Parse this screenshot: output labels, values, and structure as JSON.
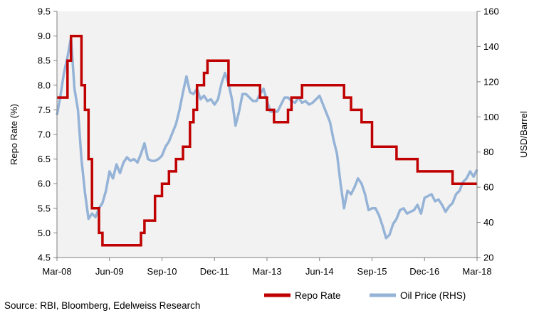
{
  "colors": {
    "plot_bg": "#f2f2f2",
    "repo": "#c00000",
    "oil": "#95b3d7"
  },
  "source": "Source: RBI, Bloomberg, Edelweiss Research",
  "chart_data": {
    "type": "line",
    "x_tick_labels": [
      "Mar-08",
      "Jun-09",
      "Sep-10",
      "Dec-11",
      "Mar-13",
      "Jun-14",
      "Sep-15",
      "Dec-16",
      "Mar-18"
    ],
    "xlim": [
      "2008-03",
      "2018-03"
    ],
    "left_axis": {
      "label": "Repo Rate (%)",
      "range": [
        4.5,
        9.5
      ],
      "ticks": [
        "4.5",
        "5.0",
        "5.5",
        "6.0",
        "6.5",
        "7.0",
        "7.5",
        "8.0",
        "8.5",
        "9.0",
        "9.5"
      ]
    },
    "right_axis": {
      "label": "USD/Barrel",
      "range": [
        20,
        160
      ],
      "ticks": [
        "20",
        "40",
        "60",
        "80",
        "100",
        "120",
        "140",
        "160"
      ]
    },
    "grid": false,
    "legend_position": "bottom-right",
    "series": [
      {
        "name": "Repo Rate",
        "axis": "left",
        "step": true,
        "color": "#c00000",
        "points": [
          [
            "2008-03",
            7.75
          ],
          [
            "2008-06",
            8.0
          ],
          [
            "2008-06",
            8.5
          ],
          [
            "2008-07",
            9.0
          ],
          [
            "2008-10",
            8.0
          ],
          [
            "2008-11",
            7.5
          ],
          [
            "2008-12",
            6.5
          ],
          [
            "2009-01",
            5.5
          ],
          [
            "2009-03",
            5.0
          ],
          [
            "2009-04",
            4.75
          ],
          [
            "2010-03",
            5.0
          ],
          [
            "2010-04",
            5.25
          ],
          [
            "2010-07",
            5.5
          ],
          [
            "2010-07",
            5.75
          ],
          [
            "2010-09",
            6.0
          ],
          [
            "2010-11",
            6.25
          ],
          [
            "2011-01",
            6.5
          ],
          [
            "2011-03",
            6.75
          ],
          [
            "2011-05",
            7.25
          ],
          [
            "2011-06",
            7.5
          ],
          [
            "2011-07",
            8.0
          ],
          [
            "2011-09",
            8.25
          ],
          [
            "2011-10",
            8.5
          ],
          [
            "2012-04",
            8.0
          ],
          [
            "2013-01",
            7.75
          ],
          [
            "2013-03",
            7.5
          ],
          [
            "2013-05",
            7.25
          ],
          [
            "2013-09",
            7.5
          ],
          [
            "2013-10",
            7.75
          ],
          [
            "2014-01",
            8.0
          ],
          [
            "2015-01",
            7.75
          ],
          [
            "2015-03",
            7.5
          ],
          [
            "2015-06",
            7.25
          ],
          [
            "2015-09",
            6.75
          ],
          [
            "2016-04",
            6.5
          ],
          [
            "2016-10",
            6.25
          ],
          [
            "2017-08",
            6.0
          ],
          [
            "2018-03",
            6.0
          ]
        ]
      },
      {
        "name": "Oil Price (RHS)",
        "axis": "right",
        "step": false,
        "color": "#95b3d7",
        "points": [
          [
            "2008-03",
            101
          ],
          [
            "2008-04",
            112
          ],
          [
            "2008-05",
            125
          ],
          [
            "2008-06",
            134
          ],
          [
            "2008-07",
            145
          ],
          [
            "2008-08",
            116
          ],
          [
            "2008-09",
            104
          ],
          [
            "2008-10",
            76
          ],
          [
            "2008-11",
            57
          ],
          [
            "2008-12",
            42
          ],
          [
            "2009-01",
            45
          ],
          [
            "2009-02",
            43
          ],
          [
            "2009-03",
            48
          ],
          [
            "2009-04",
            51
          ],
          [
            "2009-05",
            58
          ],
          [
            "2009-06",
            69
          ],
          [
            "2009-07",
            65
          ],
          [
            "2009-08",
            73
          ],
          [
            "2009-09",
            68
          ],
          [
            "2009-10",
            74
          ],
          [
            "2009-11",
            77
          ],
          [
            "2009-12",
            75
          ],
          [
            "2010-01",
            76
          ],
          [
            "2010-02",
            74
          ],
          [
            "2010-03",
            79
          ],
          [
            "2010-04",
            85
          ],
          [
            "2010-05",
            76
          ],
          [
            "2010-06",
            75
          ],
          [
            "2010-07",
            75
          ],
          [
            "2010-08",
            76
          ],
          [
            "2010-09",
            78
          ],
          [
            "2010-10",
            83
          ],
          [
            "2010-11",
            86
          ],
          [
            "2010-12",
            91
          ],
          [
            "2011-01",
            96
          ],
          [
            "2011-02",
            104
          ],
          [
            "2011-03",
            114
          ],
          [
            "2011-04",
            123
          ],
          [
            "2011-05",
            114
          ],
          [
            "2011-06",
            113
          ],
          [
            "2011-07",
            116
          ],
          [
            "2011-08",
            110
          ],
          [
            "2011-09",
            112
          ],
          [
            "2011-10",
            109
          ],
          [
            "2011-11",
            110
          ],
          [
            "2011-12",
            107
          ],
          [
            "2012-01",
            110
          ],
          [
            "2012-02",
            119
          ],
          [
            "2012-03",
            125
          ],
          [
            "2012-04",
            119
          ],
          [
            "2012-05",
            110
          ],
          [
            "2012-06",
            95
          ],
          [
            "2012-07",
            103
          ],
          [
            "2012-08",
            113
          ],
          [
            "2012-09",
            113
          ],
          [
            "2012-10",
            111
          ],
          [
            "2012-11",
            109
          ],
          [
            "2012-12",
            109
          ],
          [
            "2013-01",
            113
          ],
          [
            "2013-02",
            116
          ],
          [
            "2013-03",
            109
          ],
          [
            "2013-04",
            103
          ],
          [
            "2013-05",
            103
          ],
          [
            "2013-06",
            103
          ],
          [
            "2013-07",
            107
          ],
          [
            "2013-08",
            111
          ],
          [
            "2013-09",
            111
          ],
          [
            "2013-10",
            109
          ],
          [
            "2013-11",
            108
          ],
          [
            "2013-12",
            111
          ],
          [
            "2014-01",
            108
          ],
          [
            "2014-02",
            109
          ],
          [
            "2014-03",
            107
          ],
          [
            "2014-04",
            108
          ],
          [
            "2014-05",
            110
          ],
          [
            "2014-06",
            112
          ],
          [
            "2014-07",
            107
          ],
          [
            "2014-08",
            102
          ],
          [
            "2014-09",
            97
          ],
          [
            "2014-10",
            87
          ],
          [
            "2014-11",
            79
          ],
          [
            "2014-12",
            62
          ],
          [
            "2015-01",
            48
          ],
          [
            "2015-02",
            58
          ],
          [
            "2015-03",
            56
          ],
          [
            "2015-04",
            60
          ],
          [
            "2015-05",
            65
          ],
          [
            "2015-06",
            62
          ],
          [
            "2015-07",
            56
          ],
          [
            "2015-08",
            47
          ],
          [
            "2015-09",
            48
          ],
          [
            "2015-10",
            48
          ],
          [
            "2015-11",
            44
          ],
          [
            "2015-12",
            38
          ],
          [
            "2016-01",
            31
          ],
          [
            "2016-02",
            33
          ],
          [
            "2016-03",
            39
          ],
          [
            "2016-04",
            42
          ],
          [
            "2016-05",
            47
          ],
          [
            "2016-06",
            48
          ],
          [
            "2016-07",
            45
          ],
          [
            "2016-08",
            46
          ],
          [
            "2016-09",
            47
          ],
          [
            "2016-10",
            50
          ],
          [
            "2016-11",
            45
          ],
          [
            "2016-12",
            54
          ],
          [
            "2017-01",
            55
          ],
          [
            "2017-02",
            56
          ],
          [
            "2017-03",
            52
          ],
          [
            "2017-04",
            53
          ],
          [
            "2017-05",
            50
          ],
          [
            "2017-06",
            46
          ],
          [
            "2017-07",
            49
          ],
          [
            "2017-08",
            51
          ],
          [
            "2017-09",
            56
          ],
          [
            "2017-10",
            58
          ],
          [
            "2017-11",
            63
          ],
          [
            "2017-12",
            65
          ],
          [
            "2018-01",
            69
          ],
          [
            "2018-02",
            66
          ],
          [
            "2018-03",
            70
          ]
        ]
      }
    ]
  }
}
